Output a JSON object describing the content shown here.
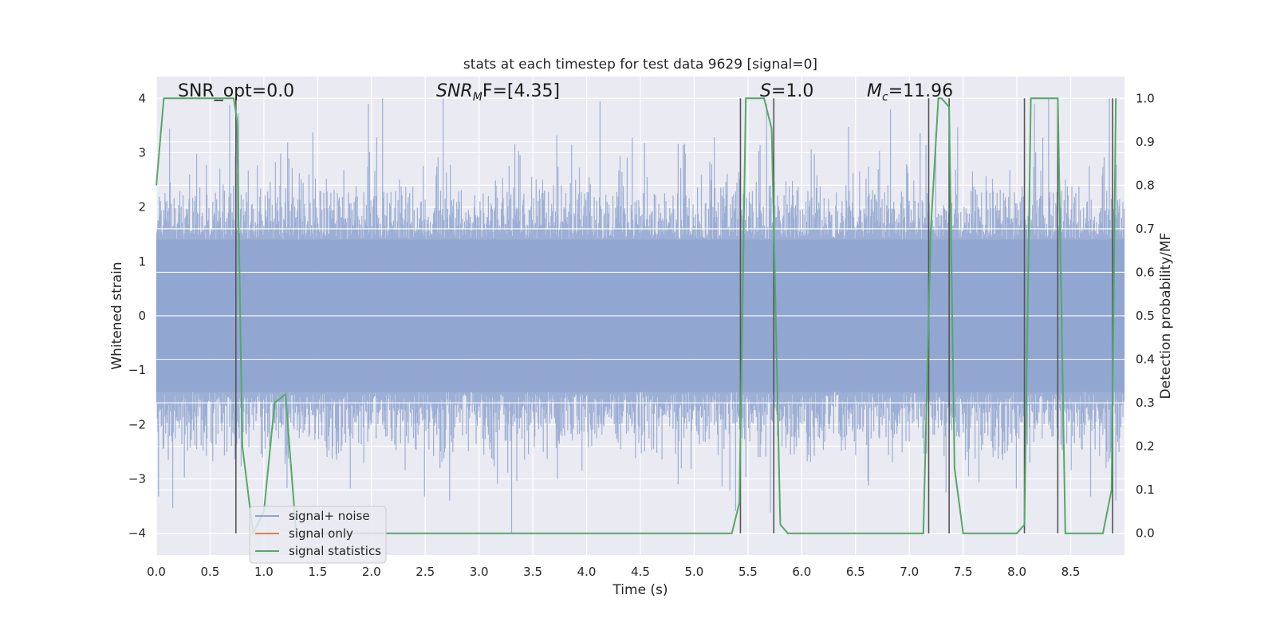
{
  "chart_data": {
    "type": "line",
    "title": "stats at each timestep for test data 9629 [signal=0]",
    "xlabel": "Time (s)",
    "ylabel": "Whitened strain",
    "y2label": "Detection probability/MF",
    "xlim": [
      0.0,
      9.0
    ],
    "ylim": [
      -4.4,
      4.4
    ],
    "y2lim": [
      -0.05,
      1.05
    ],
    "xticks": [
      "0.0",
      "0.5",
      "1.0",
      "1.5",
      "2.0",
      "2.5",
      "3.0",
      "3.5",
      "4.0",
      "4.5",
      "5.0",
      "5.5",
      "6.0",
      "6.5",
      "7.0",
      "7.5",
      "8.0",
      "8.5"
    ],
    "yticks": [
      "4",
      "3",
      "2",
      "1",
      "0",
      "−1",
      "−2",
      "−3",
      "−4"
    ],
    "y2ticks": [
      "1.0",
      "0.9",
      "0.8",
      "0.7",
      "0.6",
      "0.5",
      "0.4",
      "0.3",
      "0.2",
      "0.1",
      "0.0"
    ],
    "grid": true,
    "legend_position": "lower-left",
    "annotations": {
      "snr_opt": "SNR_opt=0.0",
      "snr_mf": "SNR",
      "snr_mf_sub": "M",
      "snr_mf_rest": "F=[4.35]",
      "s_stat": "S",
      "s_rest": "=1.0",
      "mc": "M",
      "mc_sub": "c",
      "mc_rest": "=11.96"
    },
    "series": [
      {
        "name": "signal+ noise",
        "color": "#8fa5cf",
        "description_amplitude_range": [
          -4.0,
          4.0
        ]
      },
      {
        "name": "signal only",
        "color": "#dd8452",
        "values": []
      },
      {
        "name": "signal statistics",
        "color": "#55a868",
        "x": [
          0.0,
          0.07,
          0.12,
          0.72,
          0.75,
          0.8,
          0.9,
          1.0,
          1.1,
          1.2,
          1.3,
          1.4,
          5.35,
          5.42,
          5.48,
          5.52,
          5.65,
          5.72,
          5.8,
          5.87,
          6.5,
          7.13,
          7.2,
          7.27,
          7.3,
          7.37,
          7.42,
          7.5,
          8.0,
          8.07,
          8.13,
          8.18,
          8.38,
          8.45,
          8.8,
          8.88,
          8.92
        ],
        "y": [
          0.8,
          1.0,
          1.0,
          1.0,
          0.95,
          0.2,
          0.0,
          0.05,
          0.3,
          0.32,
          0.0,
          0.0,
          0.0,
          0.07,
          1.0,
          1.0,
          1.0,
          0.93,
          0.02,
          0.0,
          0.0,
          0.0,
          0.7,
          1.0,
          1.0,
          0.98,
          0.15,
          0.0,
          0.0,
          0.02,
          1.0,
          1.0,
          1.0,
          0.0,
          0.0,
          0.1,
          1.0
        ]
      }
    ],
    "vertical_markers_x": [
      0.74,
      5.43,
      5.74,
      7.18,
      7.37,
      8.07,
      8.38,
      8.89
    ]
  }
}
